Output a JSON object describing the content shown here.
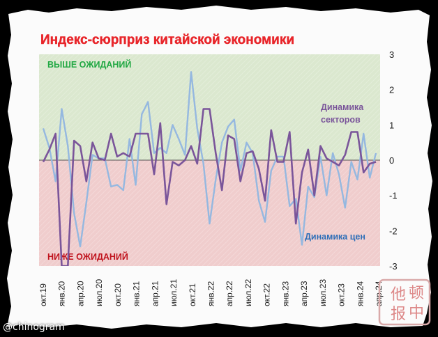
{
  "chart_data": {
    "type": "line",
    "title": "Индекс-сюрприз китайской экономики",
    "xlabel": "",
    "ylabel": "",
    "ylim": [
      -3,
      3
    ],
    "grid": false,
    "zones": {
      "above": {
        "label": "ВЫШЕ ОЖИДАНИЙ",
        "color": "#dbe8cf",
        "text_color": "#21a843"
      },
      "below": {
        "label": "НИЖЕ ОЖИДАНИЙ",
        "color": "#f0cdcd",
        "text_color": "#c0141e"
      }
    },
    "x_tick_labels": [
      "окт.19",
      "янв.20",
      "апр.20",
      "июл.20",
      "окт.20",
      "янв.21",
      "апр.21",
      "июл.21",
      "окт.21",
      "янв.22",
      "апр.22",
      "июл.22",
      "окт.22",
      "янв.23",
      "апр.23",
      "июл.23",
      "окт.23",
      "янв.24",
      "апр.24"
    ],
    "y_ticks": [
      3,
      2,
      1,
      0,
      -1,
      -2,
      -3
    ],
    "series": [
      {
        "name": "Динамика цен",
        "color": "#95b8e0",
        "values": [
          0.9,
          0.35,
          -0.6,
          1.45,
          0.4,
          -1.5,
          -2.45,
          -1.2,
          0.15,
          0.05,
          0.05,
          -0.75,
          -0.7,
          -0.85,
          0.6,
          -0.7,
          1.3,
          1.65,
          0.2,
          0.35,
          0.2,
          1.0,
          0.6,
          0.15,
          2.5,
          0.9,
          -0.1,
          -1.8,
          -0.55,
          0.5,
          0.95,
          1.15,
          -0.3,
          0.5,
          0.2,
          -1.15,
          -1.75,
          -0.3,
          0.1,
          0.1,
          -1.3,
          -1.1,
          -2.4,
          -0.75,
          -1.05,
          0.1,
          -1.0,
          0.2,
          -0.4,
          -1.35,
          -0.05,
          -0.55,
          0.75,
          -0.5,
          0.2
        ]
      },
      {
        "name": "Динамика секторов",
        "color": "#7a559a",
        "values": [
          -0.05,
          0.3,
          0.75,
          -3.0,
          -3.0,
          0.55,
          0.4,
          -0.6,
          0.5,
          0.05,
          0.0,
          0.75,
          0.1,
          0.2,
          0.1,
          0.75,
          0.75,
          0.75,
          -0.4,
          1.05,
          -1.25,
          -0.05,
          -0.15,
          0.0,
          0.4,
          -0.1,
          1.45,
          1.45,
          0.2,
          -0.85,
          0.7,
          0.6,
          -0.6,
          0.2,
          0.25,
          -0.25,
          -1.15,
          0.85,
          -0.05,
          -0.05,
          0.8,
          -1.8,
          -0.35,
          0.3,
          -1.0,
          0.4,
          0.05,
          -0.05,
          -0.15,
          0.15,
          0.8,
          0.8,
          -0.35,
          -0.1,
          -0.05
        ]
      }
    ]
  },
  "watermark": {
    "handle": "@chinogram",
    "seal_text": [
      "他",
      "顿",
      "报",
      "中"
    ]
  }
}
